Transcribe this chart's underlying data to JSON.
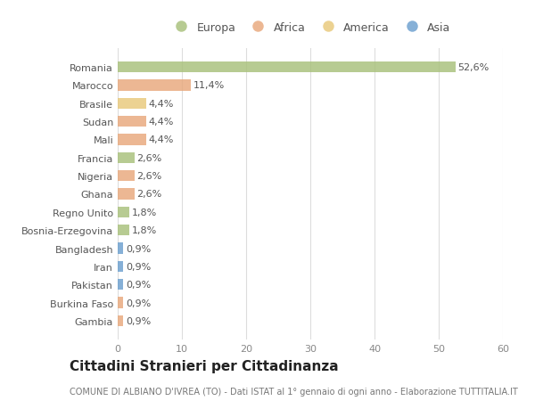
{
  "countries": [
    "Romania",
    "Marocco",
    "Brasile",
    "Sudan",
    "Mali",
    "Francia",
    "Nigeria",
    "Ghana",
    "Regno Unito",
    "Bosnia-Erzegovina",
    "Bangladesh",
    "Iran",
    "Pakistan",
    "Burkina Faso",
    "Gambia"
  ],
  "values": [
    52.6,
    11.4,
    4.4,
    4.4,
    4.4,
    2.6,
    2.6,
    2.6,
    1.8,
    1.8,
    0.9,
    0.9,
    0.9,
    0.9,
    0.9
  ],
  "labels": [
    "52,6%",
    "11,4%",
    "4,4%",
    "4,4%",
    "4,4%",
    "2,6%",
    "2,6%",
    "2,6%",
    "1,8%",
    "1,8%",
    "0,9%",
    "0,9%",
    "0,9%",
    "0,9%",
    "0,9%"
  ],
  "colors": [
    "#a8c07a",
    "#e8a87c",
    "#e8c97a",
    "#e8a87c",
    "#e8a87c",
    "#a8c07a",
    "#e8a87c",
    "#e8a87c",
    "#a8c07a",
    "#a8c07a",
    "#6b9fcf",
    "#6b9fcf",
    "#6b9fcf",
    "#e8a87c",
    "#e8a87c"
  ],
  "legend_labels": [
    "Europa",
    "Africa",
    "America",
    "Asia"
  ],
  "legend_colors": [
    "#a8c07a",
    "#e8a87c",
    "#e8c97a",
    "#6b9fcf"
  ],
  "title": "Cittadini Stranieri per Cittadinanza",
  "subtitle": "COMUNE DI ALBIANO D'IVREA (TO) - Dati ISTAT al 1° gennaio di ogni anno - Elaborazione TUTTITALIA.IT",
  "xlim": [
    0,
    60
  ],
  "xticks": [
    0,
    10,
    20,
    30,
    40,
    50,
    60
  ],
  "bg_color": "#ffffff",
  "bar_bg_color": "#ffffff",
  "label_fontsize": 8,
  "tick_fontsize": 8,
  "title_fontsize": 11,
  "subtitle_fontsize": 7
}
